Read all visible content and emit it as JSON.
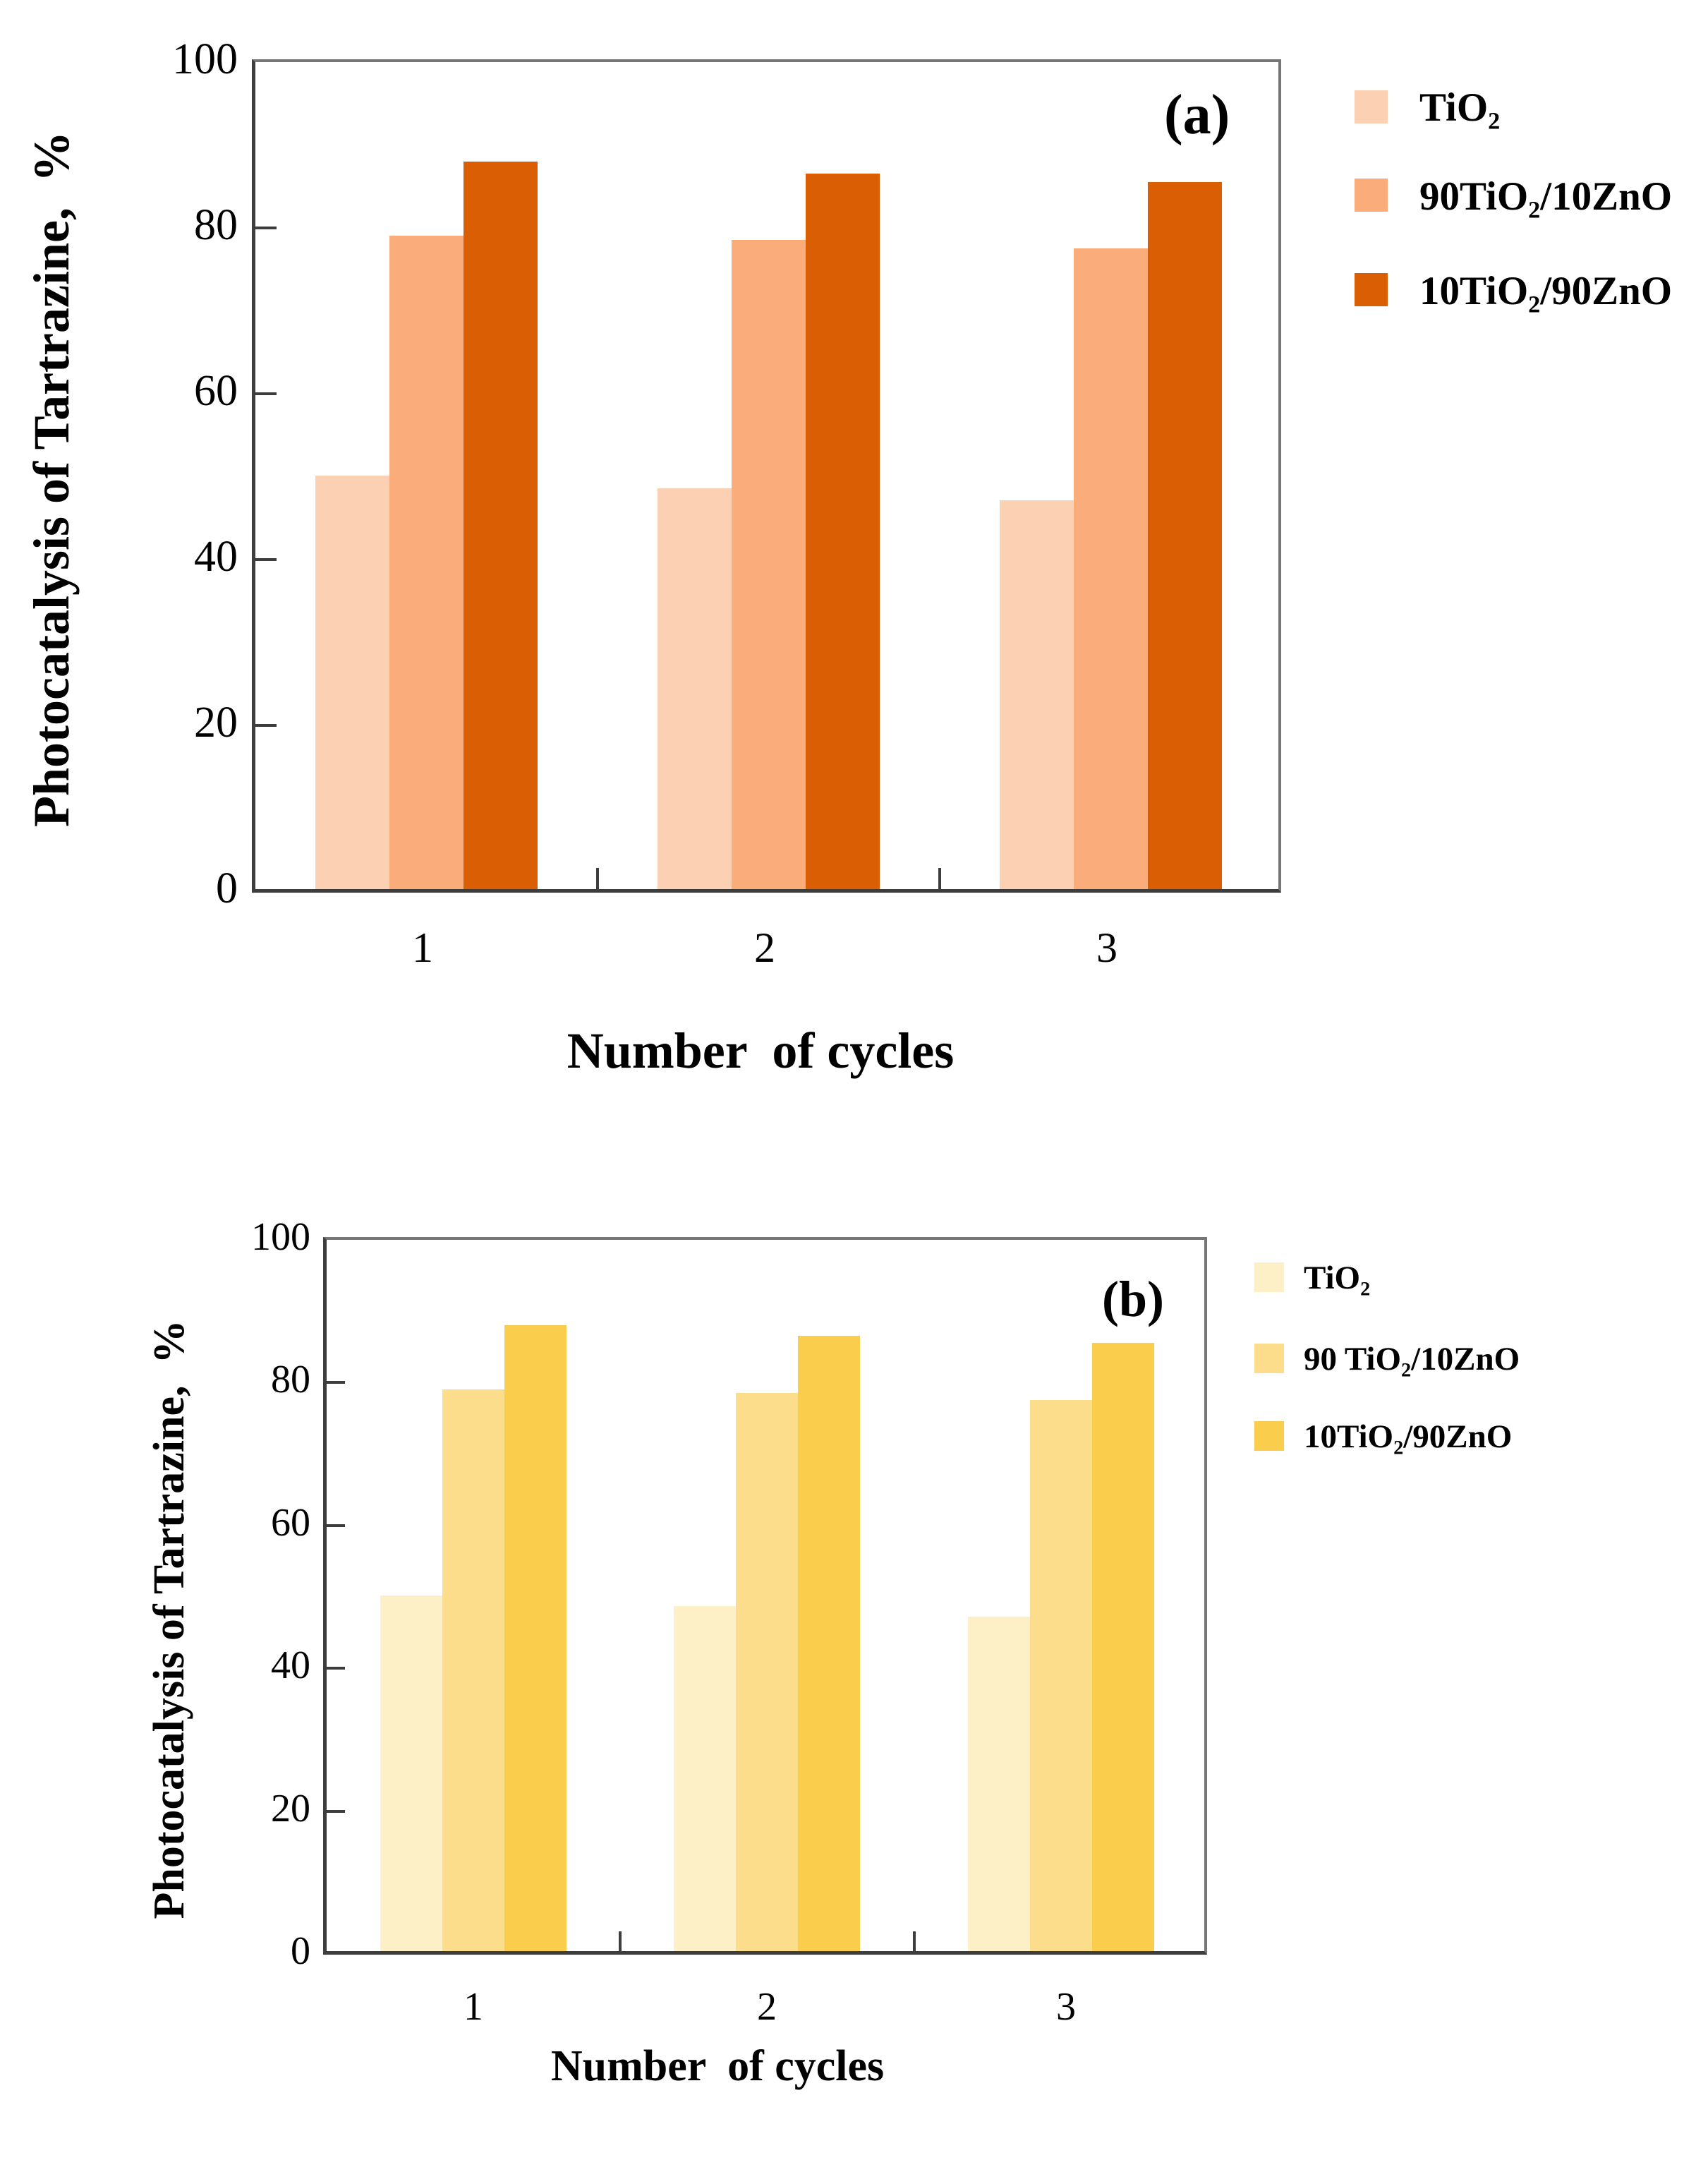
{
  "chart_data": [
    {
      "type": "bar",
      "panel_label": "(a)",
      "ylabel": "Photocatalysis of Tartrazine,  %",
      "xlabel": "Number  of cycles",
      "categories": [
        "1",
        "2",
        "3"
      ],
      "y_ticks": [
        "100",
        "80",
        "60",
        "40",
        "20",
        "0"
      ],
      "ylim": [
        0,
        100
      ],
      "grid": false,
      "legend_position": "right-outside",
      "axis_color": "#3d3d3d",
      "series": [
        {
          "name": "TiO₂",
          "color": "#FCD1B3",
          "values": [
            50,
            48.5,
            47
          ]
        },
        {
          "name": "90TiO₂/10ZnO",
          "color": "#FAAC7A",
          "values": [
            79,
            78.5,
            77.5
          ]
        },
        {
          "name": "10TiO₂/90ZnO",
          "color": "#DA5F04",
          "values": [
            88,
            86.5,
            85.5
          ]
        }
      ]
    },
    {
      "type": "bar",
      "panel_label": "(b)",
      "ylabel": "Photocatalysis of Tartrazine,  %",
      "xlabel": "Number  of cycles",
      "categories": [
        "1",
        "2",
        "3"
      ],
      "y_ticks": [
        "100",
        "80",
        "60",
        "40",
        "20",
        "0"
      ],
      "ylim": [
        0,
        100
      ],
      "grid": false,
      "legend_position": "right-outside",
      "axis_color": "#3d3d3d",
      "series": [
        {
          "name": "TiO₂",
          "color": "#FDF0C6",
          "values": [
            50,
            48.5,
            47
          ]
        },
        {
          "name": "90 TiO₂/10ZnO",
          "color": "#FCDD8C",
          "values": [
            79,
            78.5,
            77.5
          ]
        },
        {
          "name": "10TiO₂/90ZnO",
          "color": "#FACD4D",
          "values": [
            88,
            86.5,
            85.5
          ]
        }
      ]
    }
  ]
}
